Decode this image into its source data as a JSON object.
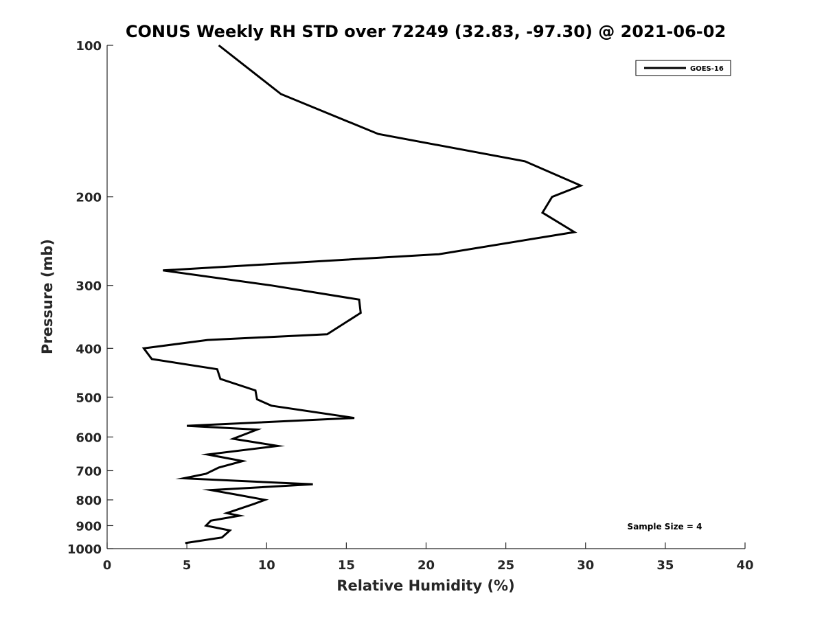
{
  "chart_data": {
    "type": "line",
    "title": "CONUS Weekly RH STD over 72249 (32.83, -97.30) @ 2021-06-02",
    "xlabel": "Relative Humidity (%)",
    "ylabel": "Pressure (mb)",
    "xlim": [
      0,
      40
    ],
    "ylim": [
      1000,
      100
    ],
    "y_scale": "log",
    "y_direction": "reversed",
    "xticks": [
      0,
      5,
      10,
      15,
      20,
      25,
      30,
      35,
      40
    ],
    "yticks": [
      100,
      200,
      300,
      400,
      500,
      600,
      700,
      800,
      900,
      1000
    ],
    "grid": false,
    "legend_position": "top-right",
    "annotation": "Sample Size = 4",
    "series": [
      {
        "name": "GOES-16",
        "color": "#000000",
        "x": [
          7.0,
          10.9,
          17.0,
          26.2,
          29.7,
          27.9,
          27.3,
          29.3,
          20.8,
          3.5,
          10.3,
          15.8,
          15.9,
          13.8,
          6.3,
          2.3,
          2.8,
          6.9,
          7.1,
          9.3,
          9.4,
          10.3,
          15.5,
          5.0,
          9.4,
          7.9,
          10.7,
          6.3,
          8.5,
          7.0,
          6.2,
          4.8,
          12.9,
          6.5,
          8.0,
          9.9,
          9.2,
          7.5,
          8.3,
          6.5,
          6.2,
          7.7,
          7.2,
          4.9
        ],
        "y": [
          100,
          125,
          150,
          170,
          190,
          200,
          215,
          235,
          260,
          280,
          300,
          320,
          340,
          375,
          385,
          400,
          420,
          440,
          460,
          485,
          505,
          520,
          550,
          570,
          580,
          605,
          625,
          650,
          670,
          690,
          710,
          725,
          745,
          765,
          780,
          800,
          815,
          850,
          860,
          880,
          900,
          920,
          950,
          975
        ]
      }
    ]
  }
}
